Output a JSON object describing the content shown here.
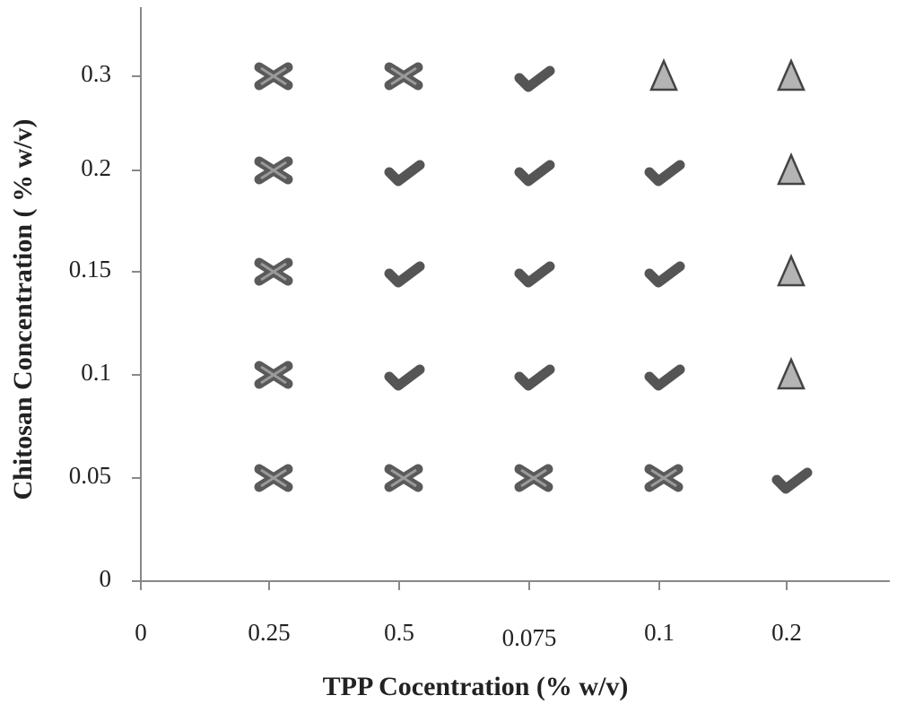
{
  "chart_data": {
    "type": "symbol-matrix",
    "x_label": "TPP Cocentration (% w/v)",
    "y_label": "Chitosan Concentration ( % w/v)",
    "x_categories": [
      "0",
      "0.25",
      "0.5",
      "0.075",
      "0.1",
      "0.2"
    ],
    "y_categories": [
      "0",
      "0.05",
      "0.1",
      "0.15",
      "0.2",
      "0.3"
    ],
    "markers": [
      [
        null,
        null,
        null,
        null,
        null,
        null
      ],
      [
        null,
        "cross",
        "cross",
        "cross",
        "cross",
        "check"
      ],
      [
        null,
        "cross",
        "check",
        "check",
        "check",
        "triangle"
      ],
      [
        null,
        "cross",
        "check",
        "check",
        "check",
        "triangle"
      ],
      [
        null,
        "cross",
        "check",
        "check",
        "check",
        "triangle"
      ],
      [
        null,
        "cross",
        "cross",
        "check",
        "triangle",
        "triangle"
      ]
    ],
    "colors": {
      "cross": "#5a5a5a",
      "check": "#555555",
      "triangle": "#b4b4b4"
    }
  }
}
